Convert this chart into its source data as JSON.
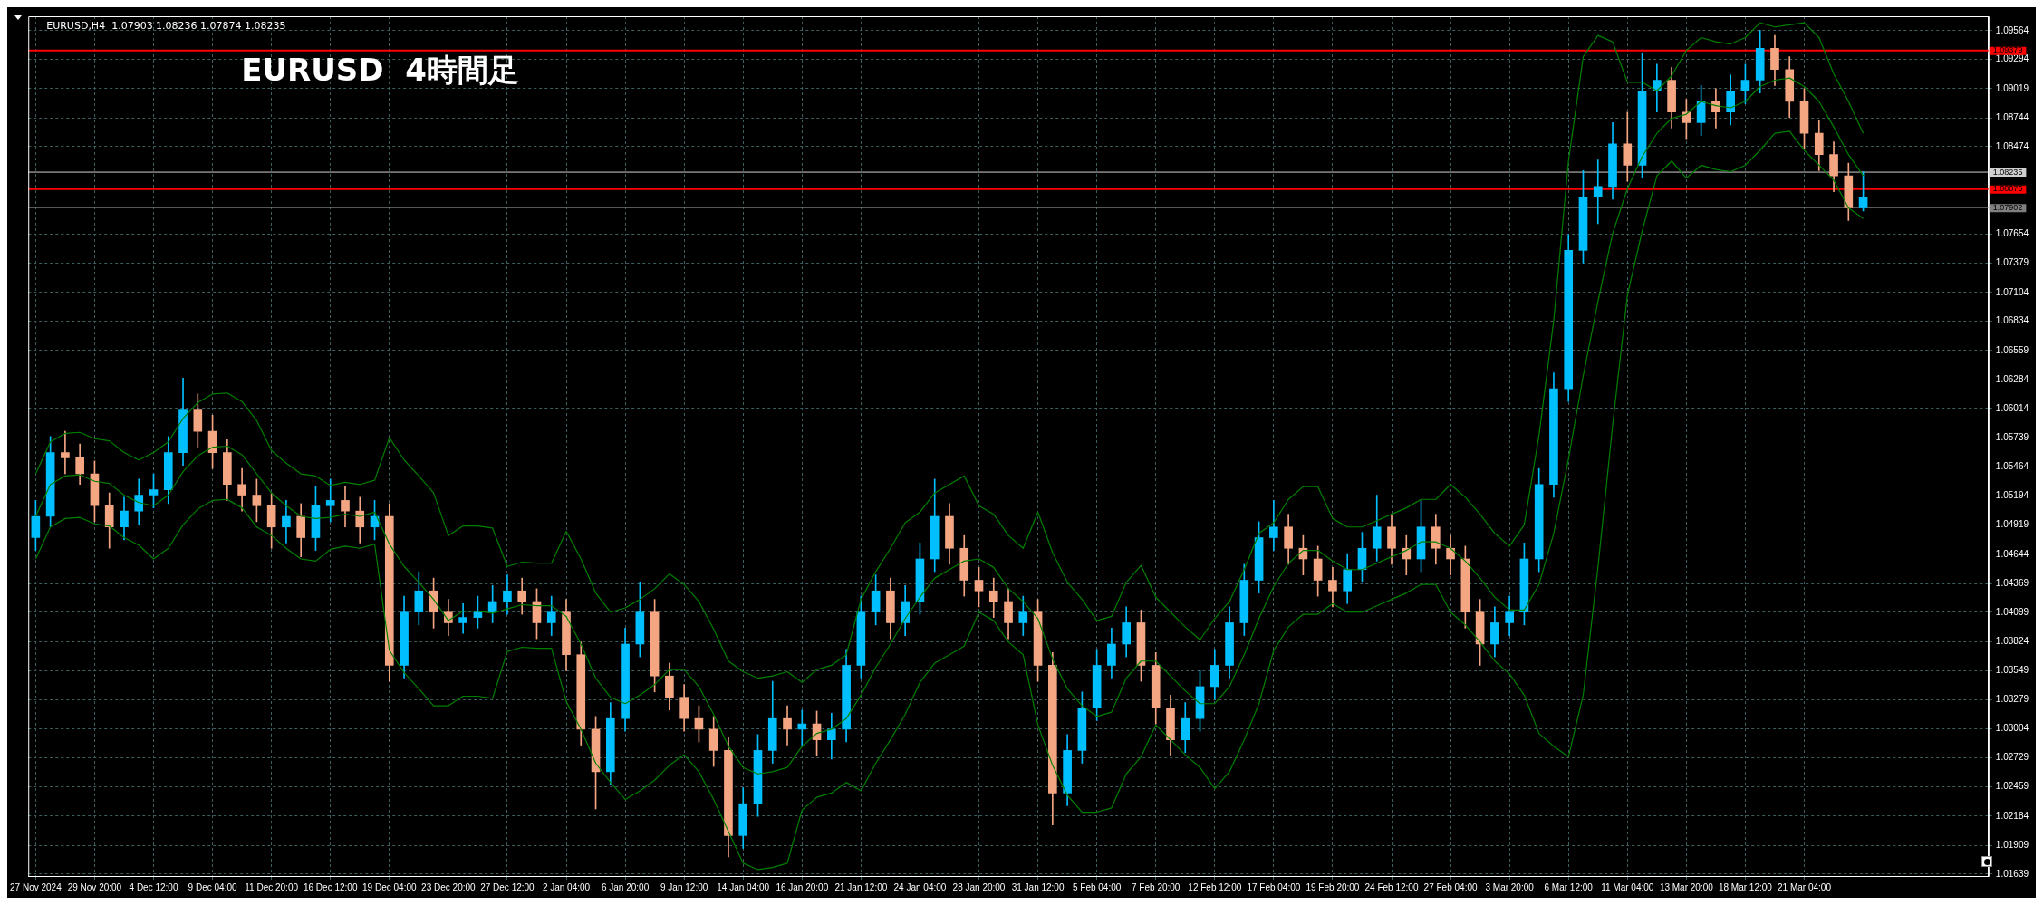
{
  "chart_data": {
    "type": "candlestick",
    "title": "EURUSD  4時間足",
    "annotations": [
      "EURUSD,H4  1.07903 1.08236 1.07874 1.08235"
    ],
    "categories": [
      "27 Nov 2024",
      null,
      null,
      null,
      "29 Nov 20:00",
      null,
      null,
      null,
      "4 Dec 12:00",
      null,
      null,
      null,
      "9 Dec 04:00",
      null,
      null,
      null,
      "11 Dec 20:00",
      null,
      null,
      null,
      "16 Dec 12:00",
      null,
      null,
      null,
      "19 Dec 04:00",
      null,
      null,
      null,
      "23 Dec 20:00",
      null,
      null,
      null,
      "27 Dec 12:00",
      null,
      null,
      null,
      "2 Jan 04:00",
      null,
      null,
      null,
      "6 Jan 20:00",
      null,
      null,
      null,
      "9 Jan 12:00",
      null,
      null,
      null,
      "14 Jan 04:00",
      null,
      null,
      null,
      "16 Jan 20:00",
      null,
      null,
      null,
      "21 Jan 12:00",
      null,
      null,
      null,
      "24 Jan 04:00",
      null,
      null,
      null,
      "28 Jan 20:00",
      null,
      null,
      null,
      "31 Jan 12:00",
      null,
      null,
      null,
      "5 Feb 04:00",
      null,
      null,
      null,
      "7 Feb 20:00",
      null,
      null,
      null,
      "12 Feb 12:00",
      null,
      null,
      null,
      "17 Feb 04:00",
      null,
      null,
      null,
      "19 Feb 20:00",
      null,
      null,
      null,
      "24 Feb 12:00",
      null,
      null,
      null,
      "27 Feb 04:00",
      null,
      null,
      null,
      "3 Mar 20:00",
      null,
      null,
      null,
      "6 Mar 12:00",
      null,
      null,
      null,
      "11 Mar 04:00",
      null,
      null,
      null,
      "13 Mar 20:00",
      null,
      null,
      null,
      "18 Mar 12:00",
      null,
      null,
      null,
      "21 Mar 04:00",
      null,
      null,
      null,
      null
    ],
    "ohlc": [
      [
        1.048,
        1.0515,
        1.0468,
        1.05
      ],
      [
        1.05,
        1.0575,
        1.049,
        1.056
      ],
      [
        1.056,
        1.058,
        1.054,
        1.0555
      ],
      [
        1.0555,
        1.0568,
        1.053,
        1.054
      ],
      [
        1.054,
        1.0552,
        1.0495,
        1.051
      ],
      [
        1.051,
        1.0522,
        1.047,
        1.049
      ],
      [
        1.049,
        1.0518,
        1.0478,
        1.0505
      ],
      [
        1.0505,
        1.0535,
        1.0492,
        1.052
      ],
      [
        1.052,
        1.054,
        1.0508,
        1.0525
      ],
      [
        1.0525,
        1.0575,
        1.0512,
        1.056
      ],
      [
        1.056,
        1.063,
        1.0548,
        1.06
      ],
      [
        1.06,
        1.0615,
        1.0565,
        1.058
      ],
      [
        1.058,
        1.0595,
        1.0545,
        1.056
      ],
      [
        1.056,
        1.0572,
        1.0515,
        1.053
      ],
      [
        1.053,
        1.0545,
        1.0505,
        1.052
      ],
      [
        1.052,
        1.0535,
        1.0495,
        1.051
      ],
      [
        1.051,
        1.0522,
        1.047,
        1.049
      ],
      [
        1.049,
        1.0515,
        1.0475,
        1.05
      ],
      [
        1.05,
        1.0512,
        1.0462,
        1.048
      ],
      [
        1.048,
        1.0528,
        1.0468,
        1.051
      ],
      [
        1.051,
        1.0535,
        1.0495,
        1.0515
      ],
      [
        1.0515,
        1.0528,
        1.049,
        1.0505
      ],
      [
        1.0505,
        1.0518,
        1.0475,
        1.049
      ],
      [
        1.049,
        1.0515,
        1.0478,
        1.05
      ],
      [
        1.05,
        1.0512,
        1.0345,
        1.036
      ],
      [
        1.036,
        1.0425,
        1.0348,
        1.041
      ],
      [
        1.041,
        1.0448,
        1.0398,
        1.043
      ],
      [
        1.043,
        1.0442,
        1.0395,
        1.041
      ],
      [
        1.041,
        1.0422,
        1.0388,
        1.04
      ],
      [
        1.04,
        1.0418,
        1.039,
        1.0405
      ],
      [
        1.0405,
        1.0425,
        1.0395,
        1.041
      ],
      [
        1.041,
        1.0435,
        1.04,
        1.042
      ],
      [
        1.042,
        1.0445,
        1.0408,
        1.043
      ],
      [
        1.043,
        1.0442,
        1.0408,
        1.042
      ],
      [
        1.042,
        1.0432,
        1.0385,
        1.04
      ],
      [
        1.04,
        1.0425,
        1.0388,
        1.041
      ],
      [
        1.041,
        1.0422,
        1.0355,
        1.037
      ],
      [
        1.037,
        1.0382,
        1.0285,
        1.03
      ],
      [
        1.03,
        1.0312,
        1.0225,
        1.026
      ],
      [
        1.026,
        1.0325,
        1.0248,
        1.031
      ],
      [
        1.031,
        1.0395,
        1.0298,
        1.038
      ],
      [
        1.038,
        1.0438,
        1.0368,
        1.041
      ],
      [
        1.041,
        1.0422,
        1.0335,
        1.035
      ],
      [
        1.035,
        1.0362,
        1.0318,
        1.033
      ],
      [
        1.033,
        1.0342,
        1.0298,
        1.031
      ],
      [
        1.031,
        1.0322,
        1.0288,
        1.03
      ],
      [
        1.03,
        1.0312,
        1.0265,
        1.028
      ],
      [
        1.028,
        1.0292,
        1.018,
        1.02
      ],
      [
        1.02,
        1.0245,
        1.0188,
        1.023
      ],
      [
        1.023,
        1.0295,
        1.0218,
        1.028
      ],
      [
        1.028,
        1.0345,
        1.0268,
        1.031
      ],
      [
        1.031,
        1.0322,
        1.0285,
        1.03
      ],
      [
        1.03,
        1.0318,
        1.0285,
        1.0305
      ],
      [
        1.0305,
        1.0317,
        1.0275,
        1.029
      ],
      [
        1.029,
        1.0315,
        1.0272,
        1.03
      ],
      [
        1.03,
        1.0375,
        1.0288,
        1.036
      ],
      [
        1.036,
        1.0425,
        1.0348,
        1.041
      ],
      [
        1.041,
        1.0445,
        1.0398,
        1.043
      ],
      [
        1.043,
        1.0442,
        1.0385,
        1.04
      ],
      [
        1.04,
        1.0435,
        1.0388,
        1.042
      ],
      [
        1.042,
        1.0475,
        1.0408,
        1.046
      ],
      [
        1.046,
        1.0535,
        1.0448,
        1.05
      ],
      [
        1.05,
        1.0512,
        1.0455,
        1.047
      ],
      [
        1.047,
        1.0482,
        1.0425,
        1.044
      ],
      [
        1.044,
        1.0452,
        1.0415,
        1.043
      ],
      [
        1.043,
        1.0442,
        1.0405,
        1.042
      ],
      [
        1.042,
        1.0432,
        1.0385,
        1.04
      ],
      [
        1.04,
        1.0425,
        1.0388,
        1.041
      ],
      [
        1.041,
        1.0422,
        1.0345,
        1.036
      ],
      [
        1.036,
        1.0372,
        1.021,
        1.024
      ],
      [
        1.024,
        1.0295,
        1.0228,
        1.028
      ],
      [
        1.028,
        1.0335,
        1.0268,
        1.032
      ],
      [
        1.032,
        1.0375,
        1.0308,
        1.036
      ],
      [
        1.036,
        1.0395,
        1.0348,
        1.038
      ],
      [
        1.038,
        1.0415,
        1.0368,
        1.04
      ],
      [
        1.04,
        1.0412,
        1.0345,
        1.036
      ],
      [
        1.036,
        1.0372,
        1.0305,
        1.032
      ],
      [
        1.032,
        1.0332,
        1.0275,
        1.029
      ],
      [
        1.029,
        1.0325,
        1.0278,
        1.031
      ],
      [
        1.031,
        1.0355,
        1.0298,
        1.034
      ],
      [
        1.034,
        1.0375,
        1.0328,
        1.036
      ],
      [
        1.036,
        1.0415,
        1.0348,
        1.04
      ],
      [
        1.04,
        1.0455,
        1.0388,
        1.044
      ],
      [
        1.044,
        1.0495,
        1.0428,
        1.048
      ],
      [
        1.048,
        1.0515,
        1.0468,
        1.049
      ],
      [
        1.049,
        1.0502,
        1.0455,
        1.047
      ],
      [
        1.047,
        1.0482,
        1.0445,
        1.046
      ],
      [
        1.046,
        1.0472,
        1.0425,
        1.044
      ],
      [
        1.044,
        1.0452,
        1.0415,
        1.043
      ],
      [
        1.043,
        1.0465,
        1.0418,
        1.045
      ],
      [
        1.045,
        1.0485,
        1.0438,
        1.047
      ],
      [
        1.047,
        1.052,
        1.0458,
        1.049
      ],
      [
        1.049,
        1.0502,
        1.0455,
        1.047
      ],
      [
        1.047,
        1.0482,
        1.0445,
        1.046
      ],
      [
        1.046,
        1.0515,
        1.0448,
        1.049
      ],
      [
        1.049,
        1.0502,
        1.0455,
        1.047
      ],
      [
        1.047,
        1.0482,
        1.0445,
        1.046
      ],
      [
        1.046,
        1.0472,
        1.0395,
        1.041
      ],
      [
        1.041,
        1.0422,
        1.036,
        1.038
      ],
      [
        1.038,
        1.0415,
        1.0368,
        1.04
      ],
      [
        1.04,
        1.0425,
        1.0388,
        1.041
      ],
      [
        1.041,
        1.0475,
        1.0398,
        1.046
      ],
      [
        1.046,
        1.0545,
        1.0448,
        1.053
      ],
      [
        1.053,
        1.0635,
        1.0518,
        1.062
      ],
      [
        1.062,
        1.0765,
        1.0608,
        1.075
      ],
      [
        1.075,
        1.0825,
        1.0738,
        1.08
      ],
      [
        1.08,
        1.0835,
        1.0775,
        1.081
      ],
      [
        1.081,
        1.087,
        1.0798,
        1.085
      ],
      [
        1.085,
        1.088,
        1.0815,
        1.083
      ],
      [
        1.083,
        1.0935,
        1.0818,
        1.09
      ],
      [
        1.09,
        1.0925,
        1.088,
        1.091
      ],
      [
        1.091,
        1.0922,
        1.0865,
        1.088
      ],
      [
        1.088,
        1.0892,
        1.0855,
        1.087
      ],
      [
        1.087,
        1.0905,
        1.0858,
        1.089
      ],
      [
        1.089,
        1.0902,
        1.0865,
        1.088
      ],
      [
        1.088,
        1.0915,
        1.0868,
        1.09
      ],
      [
        1.09,
        1.0925,
        1.0888,
        1.091
      ],
      [
        1.091,
        1.0957,
        1.0898,
        1.094
      ],
      [
        1.094,
        1.0952,
        1.0905,
        1.092
      ],
      [
        1.092,
        1.0932,
        1.0875,
        1.089
      ],
      [
        1.089,
        1.0902,
        1.0845,
        1.086
      ],
      [
        1.086,
        1.0872,
        1.0825,
        1.084
      ],
      [
        1.084,
        1.0852,
        1.0805,
        1.082
      ],
      [
        1.082,
        1.0832,
        1.0778,
        1.079
      ],
      [
        1.079,
        1.0824,
        1.0787,
        1.08
      ]
    ],
    "colors": [
      "#00bfff",
      "#00bfff",
      "#f4a582",
      "#f4a582",
      "#f4a582",
      "#f4a582",
      "#00bfff",
      "#00bfff",
      "#00bfff",
      "#00bfff",
      "#00bfff",
      "#f4a582",
      "#f4a582",
      "#f4a582",
      "#f4a582",
      "#f4a582",
      "#f4a582",
      "#00bfff",
      "#f4a582",
      "#00bfff",
      "#00bfff",
      "#f4a582",
      "#f4a582",
      "#00bfff",
      "#f4a582",
      "#00bfff",
      "#00bfff",
      "#f4a582",
      "#f4a582",
      "#00bfff",
      "#00bfff",
      "#00bfff",
      "#00bfff",
      "#f4a582",
      "#f4a582",
      "#00bfff",
      "#f4a582",
      "#f4a582",
      "#f4a582",
      "#00bfff",
      "#00bfff",
      "#00bfff",
      "#f4a582",
      "#f4a582",
      "#f4a582",
      "#f4a582",
      "#f4a582",
      "#f4a582",
      "#00bfff",
      "#00bfff",
      "#00bfff",
      "#f4a582",
      "#00bfff",
      "#f4a582",
      "#00bfff",
      "#00bfff",
      "#00bfff",
      "#00bfff",
      "#f4a582",
      "#00bfff",
      "#00bfff",
      "#00bfff",
      "#f4a582",
      "#f4a582",
      "#f4a582",
      "#f4a582",
      "#f4a582",
      "#00bfff",
      "#f4a582",
      "#f4a582",
      "#00bfff",
      "#00bfff",
      "#00bfff",
      "#00bfff",
      "#00bfff",
      "#f4a582",
      "#f4a582",
      "#f4a582",
      "#00bfff",
      "#00bfff",
      "#00bfff",
      "#00bfff",
      "#00bfff",
      "#00bfff",
      "#00bfff",
      "#f4a582",
      "#f4a582",
      "#f4a582",
      "#f4a582",
      "#00bfff",
      "#00bfff",
      "#00bfff",
      "#f4a582",
      "#f4a582",
      "#00bfff",
      "#f4a582",
      "#f4a582",
      "#f4a582",
      "#f4a582",
      "#00bfff",
      "#00bfff",
      "#00bfff",
      "#00bfff",
      "#00bfff",
      "#00bfff",
      "#00bfff",
      "#00bfff",
      "#00bfff",
      "#f4a582",
      "#00bfff",
      "#00bfff",
      "#f4a582",
      "#f4a582",
      "#00bfff",
      "#f4a582",
      "#00bfff",
      "#00bfff",
      "#00bfff",
      "#f4a582",
      "#f4a582",
      "#f4a582",
      "#f4a582",
      "#f4a582",
      "#f4a582",
      "#00bfff"
    ],
    "series": [
      {
        "type": "line",
        "color": "#008000",
        "values": [
          1.054,
          1.057,
          1.0578,
          1.0579,
          1.0573,
          1.0571,
          1.056,
          1.0553,
          1.056,
          1.057,
          1.0592,
          1.0607,
          1.0615,
          1.0616,
          1.0608,
          1.059,
          1.0562,
          1.055,
          1.054,
          1.0538,
          1.0529,
          1.0532,
          1.053,
          1.0534,
          1.0574,
          1.0553,
          1.0538,
          1.0522,
          1.0482,
          1.0491,
          1.0491,
          1.0489,
          1.0453,
          1.0457,
          1.0456,
          1.0456,
          1.0486,
          1.046,
          1.0428,
          1.041,
          1.0414,
          1.0422,
          1.0432,
          1.0446,
          1.0436,
          1.042,
          1.0394,
          1.0364,
          1.0354,
          1.0348,
          1.035,
          1.0354,
          1.0344,
          1.0356,
          1.036,
          1.037,
          1.0422,
          1.0448,
          1.047,
          1.0494,
          1.0504,
          1.0522,
          1.053,
          1.0538,
          1.051,
          1.0502,
          1.0482,
          1.047,
          1.0504,
          1.0466,
          1.0438,
          1.0422,
          1.0402,
          1.0406,
          1.0438,
          1.0454,
          1.0424,
          1.041,
          1.0396,
          1.0384,
          1.0404,
          1.042,
          1.045,
          1.0484,
          1.0494,
          1.0516,
          1.0528,
          1.0528,
          1.0498,
          1.049,
          1.049,
          1.0496,
          1.0502,
          1.0508,
          1.0516,
          1.0516,
          1.053,
          1.0518,
          1.0502,
          1.0484,
          1.0472,
          1.0492,
          1.0576,
          1.0684,
          1.0834,
          1.0932,
          1.0952,
          1.0946,
          1.0908,
          1.0908,
          1.09,
          1.0914,
          1.0938,
          1.095,
          1.0946,
          1.0944,
          1.095,
          1.0964,
          1.096,
          1.0962,
          1.0964,
          1.095,
          1.0916,
          1.089,
          1.086
        ]
      },
      {
        "type": "line",
        "color": "#008000",
        "values": [
          1.05,
          1.053,
          1.0538,
          1.0539,
          1.0533,
          1.0531,
          1.052,
          1.0513,
          1.051,
          1.052,
          1.0542,
          1.0557,
          1.0565,
          1.0566,
          1.0558,
          1.054,
          1.0522,
          1.051,
          1.05,
          1.0498,
          1.0499,
          1.0502,
          1.05,
          1.0504,
          1.0474,
          1.0453,
          1.0438,
          1.0422,
          1.0402,
          1.0411,
          1.0411,
          1.0409,
          1.0413,
          1.0417,
          1.0416,
          1.0416,
          1.0406,
          1.038,
          1.0348,
          1.033,
          1.0324,
          1.0332,
          1.0342,
          1.0356,
          1.0356,
          1.034,
          1.0314,
          1.0284,
          1.0264,
          1.0258,
          1.026,
          1.0264,
          1.0284,
          1.0296,
          1.03,
          1.031,
          1.0332,
          1.0358,
          1.038,
          1.0404,
          1.0424,
          1.0442,
          1.045,
          1.0458,
          1.046,
          1.0452,
          1.0432,
          1.042,
          1.0404,
          1.0366,
          1.0338,
          1.0322,
          1.0312,
          1.0316,
          1.0348,
          1.0364,
          1.0364,
          1.035,
          1.0336,
          1.0324,
          1.0324,
          1.034,
          1.037,
          1.0404,
          1.0434,
          1.0456,
          1.0468,
          1.0468,
          1.0458,
          1.045,
          1.045,
          1.0456,
          1.0462,
          1.0468,
          1.0476,
          1.0476,
          1.047,
          1.0458,
          1.0442,
          1.0424,
          1.0412,
          1.0412,
          1.0436,
          1.0484,
          1.0554,
          1.0632,
          1.0702,
          1.0766,
          1.0808,
          1.0838,
          1.086,
          1.0874,
          1.0878,
          1.089,
          1.0886,
          1.0884,
          1.089,
          1.0904,
          1.091,
          1.0912,
          1.0904,
          1.089,
          1.0866,
          1.084,
          1.082
        ]
      },
      {
        "type": "line",
        "color": "#008000",
        "values": [
          1.046,
          1.049,
          1.0498,
          1.0499,
          1.0493,
          1.0491,
          1.048,
          1.0473,
          1.046,
          1.047,
          1.0492,
          1.0507,
          1.0515,
          1.0516,
          1.0508,
          1.049,
          1.0482,
          1.047,
          1.046,
          1.0458,
          1.0469,
          1.0472,
          1.047,
          1.0474,
          1.0374,
          1.0353,
          1.0338,
          1.0322,
          1.0322,
          1.0331,
          1.0331,
          1.0329,
          1.0373,
          1.0377,
          1.0376,
          1.0376,
          1.0326,
          1.03,
          1.0268,
          1.025,
          1.0234,
          1.0242,
          1.0252,
          1.0266,
          1.0276,
          1.026,
          1.0234,
          1.0204,
          1.0174,
          1.0168,
          1.017,
          1.0174,
          1.0224,
          1.0236,
          1.024,
          1.025,
          1.0242,
          1.0268,
          1.029,
          1.0314,
          1.0344,
          1.0362,
          1.037,
          1.0378,
          1.041,
          1.0402,
          1.0382,
          1.037,
          1.0304,
          1.0266,
          1.0238,
          1.0222,
          1.0222,
          1.0226,
          1.0258,
          1.0274,
          1.0304,
          1.029,
          1.0276,
          1.0264,
          1.0244,
          1.026,
          1.029,
          1.0324,
          1.0374,
          1.0396,
          1.0408,
          1.0408,
          1.0418,
          1.041,
          1.041,
          1.0416,
          1.0422,
          1.0428,
          1.0436,
          1.0436,
          1.041,
          1.0398,
          1.0382,
          1.0364,
          1.0352,
          1.0332,
          1.0296,
          1.0284,
          1.0274,
          1.0332,
          1.0452,
          1.0586,
          1.0708,
          1.0768,
          1.082,
          1.0834,
          1.0818,
          1.083,
          1.0826,
          1.0824,
          1.083,
          1.0844,
          1.086,
          1.0862,
          1.0844,
          1.083,
          1.0816,
          1.079,
          1.078
        ]
      }
    ],
    "ylim": [
      1.0162,
      1.097
    ],
    "yticks": [
      1.09564,
      1.09294,
      1.09019,
      1.08744,
      1.08474,
      1.07654,
      1.07379,
      1.07104,
      1.06834,
      1.06559,
      1.06284,
      1.06014,
      1.05739,
      1.05464,
      1.05194,
      1.04919,
      1.04644,
      1.04369,
      1.04099,
      1.03824,
      1.03549,
      1.03279,
      1.03004,
      1.02729,
      1.02459,
      1.02184,
      1.01909,
      1.01639
    ],
    "ref_lines": [
      {
        "axis": "y",
        "value": 1.09379,
        "label": "1.09379",
        "color": "#ff0000"
      },
      {
        "axis": "y",
        "value": 1.08235,
        "label": "1.08235",
        "color": "#d0d0d0"
      },
      {
        "axis": "y",
        "value": 1.08076,
        "label": "1.08076",
        "color": "#ff0000"
      },
      {
        "axis": "y",
        "value": 1.07902,
        "label": "1.07902",
        "color": "#808080"
      }
    ],
    "grid": true,
    "legend": false
  }
}
